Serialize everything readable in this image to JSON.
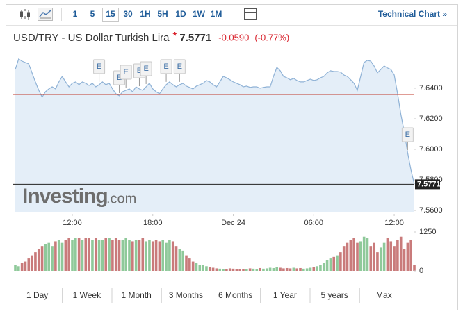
{
  "toolbar": {
    "intervals": [
      "1",
      "5",
      "15",
      "30",
      "1H",
      "5H",
      "1D",
      "1W",
      "1M"
    ],
    "selected": 2,
    "technical": "Technical Chart »"
  },
  "header": {
    "title": "USD/TRY - US Dollar Turkish Lira",
    "flag": "*",
    "price": 7.5771,
    "change": {
      "value": -0.059,
      "label": "-0.0590"
    },
    "change_pct": "(-0.77%)"
  },
  "chart_data": [
    {
      "type": "area",
      "name": "price",
      "color": "#8fb2d6",
      "fill": "#e4eef8",
      "xlim": [
        0,
        119
      ],
      "xticks": [
        {
          "value": 17,
          "label": "12:00"
        },
        {
          "value": 41,
          "label": "18:00"
        },
        {
          "value": 65,
          "label": "Dec 24"
        },
        {
          "value": 89,
          "label": "06:00"
        },
        {
          "value": 113,
          "label": "12:00"
        }
      ],
      "ylim": [
        7.5591,
        7.6636
      ],
      "yticks": [
        {
          "value": 7.56,
          "label": "7.5600"
        },
        {
          "value": 7.58,
          "label": "7.5800"
        },
        {
          "value": 7.6,
          "label": "7.6000"
        },
        {
          "value": 7.62,
          "label": "7.6200"
        },
        {
          "value": 7.64,
          "label": "7.6400"
        }
      ],
      "reference_line": 7.6359,
      "reference_color": "#c0392b",
      "watermark": [
        "Investing",
        ".com"
      ],
      "events": [
        {
          "index": 25,
          "label": "E"
        },
        {
          "index": 31,
          "label": "E"
        },
        {
          "index": 33,
          "label": "E"
        },
        {
          "index": 37,
          "label": "E"
        },
        {
          "index": 39,
          "label": "E"
        },
        {
          "index": 45,
          "label": "E"
        },
        {
          "index": 49,
          "label": "E"
        },
        {
          "index": 117,
          "label": "E"
        }
      ],
      "values": [
        7.6523,
        7.6591,
        7.6577,
        7.6568,
        7.6559,
        7.65,
        7.6441,
        7.6386,
        7.6341,
        7.6377,
        7.6395,
        7.6409,
        7.6395,
        7.6441,
        7.6477,
        7.6441,
        7.6409,
        7.6432,
        7.6441,
        7.6423,
        7.6441,
        7.6432,
        7.6418,
        7.6432,
        7.6409,
        7.6423,
        7.6441,
        7.6423,
        7.6432,
        7.6395,
        7.6364,
        7.635,
        7.6377,
        7.6386,
        7.6395,
        7.6377,
        7.6409,
        7.6395,
        7.6386,
        7.6409,
        7.6432,
        7.6395,
        7.6377,
        7.6364,
        7.6395,
        7.6423,
        7.6441,
        7.6423,
        7.6409,
        7.6423,
        7.6432,
        7.6414,
        7.6405,
        7.6395,
        7.6414,
        7.6423,
        7.6432,
        7.645,
        7.6441,
        7.6423,
        7.6409,
        7.6441,
        7.6477,
        7.6468,
        7.6455,
        7.6441,
        7.6432,
        7.6423,
        7.6409,
        7.6414,
        7.6405,
        7.6409,
        7.6409,
        7.64,
        7.6405,
        7.6409,
        7.6409,
        7.6477,
        7.6536,
        7.6514,
        7.6477,
        7.6468,
        7.6455,
        7.6464,
        7.645,
        7.6441,
        7.6441,
        7.645,
        7.6459,
        7.645,
        7.6455,
        7.6468,
        7.6477,
        7.65,
        7.6514,
        7.6509,
        7.6509,
        7.6505,
        7.6486,
        7.6477,
        7.6455,
        7.6432,
        7.6386,
        7.6477,
        7.6568,
        7.6582,
        7.6577,
        7.6545,
        7.65,
        7.6523,
        7.6545,
        7.6532,
        7.6523,
        7.6486,
        7.6364,
        7.6227,
        7.6114,
        7.5977,
        7.5864,
        7.5771
      ]
    },
    {
      "type": "bar",
      "name": "volume",
      "up_color": "#8fc99a",
      "down_color": "#c97b7b",
      "xlim": [
        0,
        119
      ],
      "ylim": [
        0,
        1250
      ],
      "yticks": [
        0,
        1250
      ],
      "values": [
        180,
        150,
        250,
        300,
        400,
        500,
        600,
        700,
        800,
        850,
        900,
        800,
        950,
        1000,
        900,
        1000,
        1050,
        1000,
        1050,
        1050,
        1000,
        1050,
        1050,
        1000,
        1050,
        1000,
        1000,
        1050,
        1050,
        1000,
        1050,
        1000,
        1000,
        1050,
        1000,
        950,
        1000,
        1000,
        1050,
        950,
        1000,
        950,
        1000,
        950,
        1000,
        900,
        1000,
        950,
        800,
        700,
        650,
        500,
        400,
        300,
        250,
        200,
        180,
        150,
        120,
        100,
        80,
        70,
        60,
        60,
        80,
        70,
        60,
        50,
        60,
        50,
        80,
        70,
        60,
        90,
        70,
        80,
        100,
        90,
        120,
        100,
        80,
        90,
        80,
        100,
        80,
        90,
        70,
        80,
        100,
        120,
        150,
        200,
        250,
        350,
        400,
        450,
        500,
        600,
        800,
        900,
        1000,
        1050,
        900,
        950,
        1100,
        1050,
        800,
        900,
        600,
        750,
        900,
        1050,
        950,
        800,
        1000,
        1100,
        700,
        900,
        1000,
        200
      ]
    }
  ],
  "ranges": [
    "1 Day",
    "1 Week",
    "1 Month",
    "3 Months",
    "6 Months",
    "1 Year",
    "5 years",
    "Max"
  ]
}
